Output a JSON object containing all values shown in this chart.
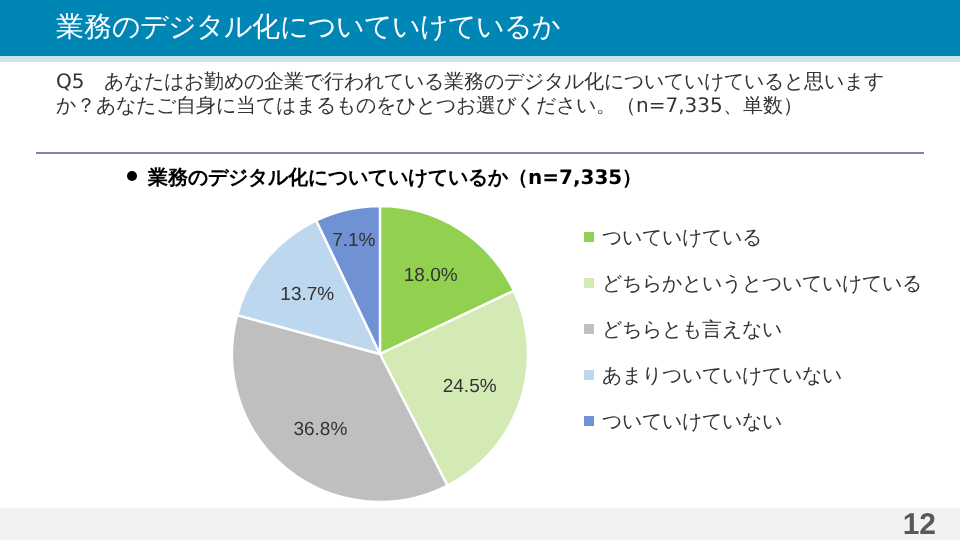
{
  "chart_data": {
    "type": "pie",
    "title": "業務のデジタル化についていけているか",
    "subtitle": "Q5　あなたはお勤めの企業で行われている業務のデジタル化についていけていると思いますか？あなたご自身に当てはまるものをひとつお選びください。（n=7,335、単数）",
    "annotations": [
      "業務のデジタル化についていけているか（n=7,335）",
      "12"
    ],
    "categories": [
      "ついていけている",
      "どちらかというとついていけている",
      "どちらとも言えない",
      "あまりついていけていない",
      "ついていけていない"
    ],
    "values": [
      18.0,
      24.5,
      36.8,
      13.7,
      7.1
    ],
    "colors": [
      "#92d050",
      "#d3eab4",
      "#bfbfbf",
      "#bdd7ee",
      "#7092d4"
    ],
    "value_labels": [
      "18.0%",
      "24.5%",
      "36.8%",
      "13.7%",
      "7.1%"
    ],
    "legend": "right"
  }
}
